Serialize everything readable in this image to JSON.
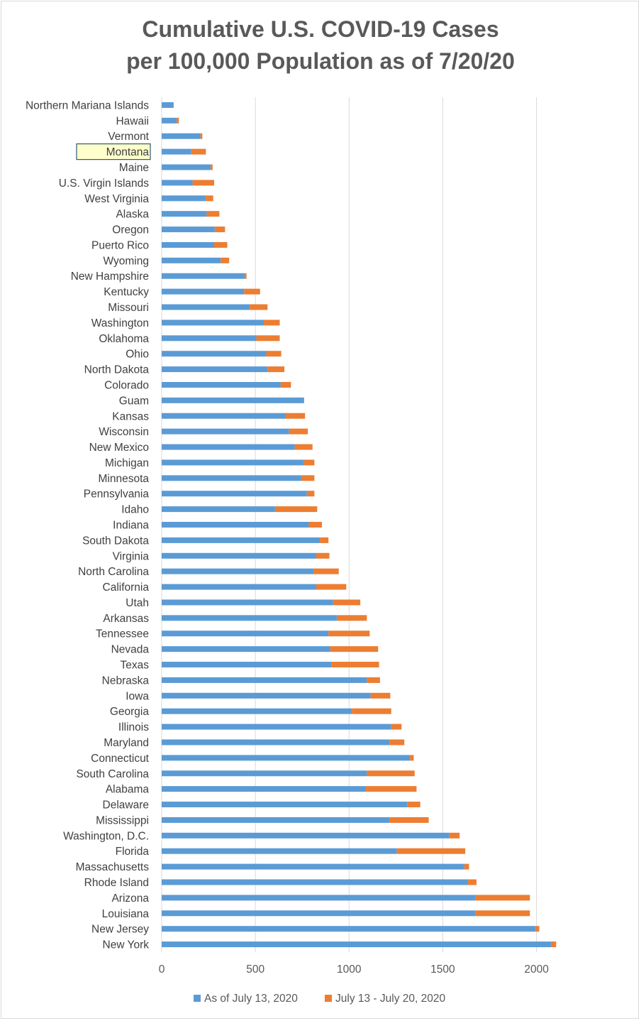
{
  "chart_data": {
    "type": "bar",
    "orientation": "horizontal",
    "stacked": true,
    "title_line1": "Cumulative U.S. COVID-19 Cases",
    "title_line2": "per 100,000 Population as of 7/20/20",
    "xlabel": "",
    "ylabel": "",
    "xlim": [
      0,
      2100
    ],
    "xticks": [
      "0",
      "500",
      "1000",
      "1500",
      "2000"
    ],
    "grid": true,
    "legend_position": "bottom",
    "highlighted_category": "Montana",
    "categories": [
      "Northern Mariana Islands",
      "Hawaii",
      "Vermont",
      "Montana",
      "Maine",
      "U.S. Virgin Islands",
      "West Virginia",
      "Alaska",
      "Oregon",
      "Puerto Rico",
      "Wyoming",
      "New Hampshire",
      "Kentucky",
      "Missouri",
      "Washington",
      "Oklahoma",
      "Ohio",
      "North Dakota",
      "Colorado",
      "Guam",
      "Kansas",
      "Wisconsin",
      "New Mexico",
      "Michigan",
      "Minnesota",
      "Pennsylvania",
      "Idaho",
      "Indiana",
      "South Dakota",
      "Virginia",
      "North Carolina",
      "California",
      "Utah",
      "Arkansas",
      "Tennessee",
      "Nevada",
      "Texas",
      "Nebraska",
      "Iowa",
      "Georgia",
      "Illinois",
      "Maryland",
      "Connecticut",
      "South Carolina",
      "Alabama",
      "Delaware",
      "Mississippi",
      "Washington, D.C.",
      "Florida",
      "Massachusetts",
      "Rhode Island",
      "Arizona",
      "Louisiana",
      "New Jersey",
      "New York"
    ],
    "series": [
      {
        "name": "As of July 13, 2020",
        "color": "#5b9bd5",
        "values": [
          64,
          80,
          207,
          158,
          262,
          165,
          235,
          240,
          283,
          280,
          315,
          443,
          440,
          470,
          545,
          505,
          558,
          565,
          635,
          760,
          660,
          680,
          710,
          760,
          745,
          775,
          605,
          785,
          845,
          825,
          810,
          825,
          915,
          935,
          890,
          900,
          905,
          1095,
          1115,
          1015,
          1225,
          1215,
          1325,
          1095,
          1090,
          1310,
          1215,
          1535,
          1255,
          1615,
          1635,
          1675,
          1675,
          1995,
          2080
        ]
      },
      {
        "name": "July 13 - July 20, 2020",
        "color": "#ed7d31",
        "values": [
          0,
          12,
          10,
          78,
          10,
          115,
          40,
          68,
          55,
          70,
          45,
          10,
          85,
          95,
          85,
          125,
          80,
          90,
          55,
          0,
          105,
          100,
          95,
          55,
          70,
          40,
          225,
          70,
          45,
          70,
          135,
          160,
          145,
          160,
          220,
          255,
          255,
          70,
          105,
          210,
          55,
          80,
          20,
          255,
          270,
          70,
          210,
          55,
          365,
          25,
          45,
          290,
          290,
          20,
          25
        ]
      }
    ]
  }
}
